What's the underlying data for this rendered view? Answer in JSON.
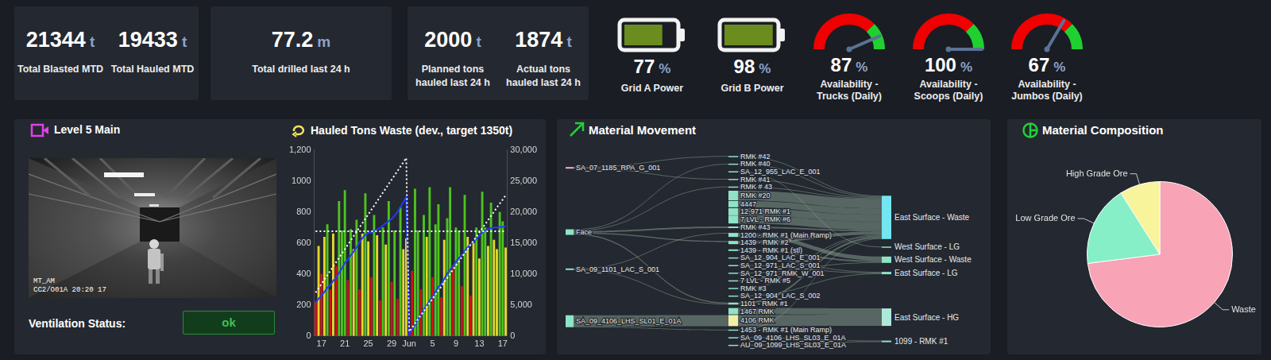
{
  "kpi_cards": [
    {
      "items": [
        {
          "value": 21344,
          "unit": "t",
          "label": "Total Blasted MTD"
        },
        {
          "value": 19433,
          "unit": "t",
          "label": "Total Hauled MTD"
        }
      ]
    },
    {
      "items": [
        {
          "value": 77.2,
          "unit": "m",
          "label": "Total drilled last 24 h"
        }
      ]
    },
    {
      "items": [
        {
          "value": 2000,
          "unit": "t",
          "label": "Planned tons hauled last 24 h"
        },
        {
          "value": 1874,
          "unit": "t",
          "label": "Actual tons hauled last 24 h"
        }
      ]
    }
  ],
  "batteries": [
    {
      "value": 77,
      "unit": "%",
      "label": "Grid A Power"
    },
    {
      "value": 98,
      "unit": "%",
      "label": "Grid B Power"
    }
  ],
  "gauges": [
    {
      "value": 87,
      "unit": "%",
      "label": "Availability - Trucks (Daily)",
      "range": [
        0,
        100
      ],
      "zones": [
        {
          "from": 0,
          "to": 75,
          "color": "#f00000"
        },
        {
          "from": 75,
          "to": 100,
          "color": "#20d030"
        }
      ]
    },
    {
      "value": 100,
      "unit": "%",
      "label": "Availability - Scoops (Daily)",
      "range": [
        0,
        100
      ],
      "zones": [
        {
          "from": 0,
          "to": 75,
          "color": "#f00000"
        },
        {
          "from": 75,
          "to": 100,
          "color": "#20d030"
        }
      ]
    },
    {
      "value": 67,
      "unit": "%",
      "label": "Availability - Jumbos (Daily)",
      "range": [
        0,
        100
      ],
      "zones": [
        {
          "from": 0,
          "to": 75,
          "color": "#f00000"
        },
        {
          "from": 75,
          "to": 100,
          "color": "#20d030"
        }
      ]
    }
  ],
  "camera_panel": {
    "title": "Level 5 Main",
    "overlay_text": [
      "MT_AM",
      "CC2/O01A 20:20 17"
    ],
    "status_label": "Ventilation Status:",
    "status": "ok"
  },
  "chart_data": [
    {
      "type": "bar",
      "title": "Hauled Tons Waste (dev., target 1350t)",
      "categories": [
        null,
        null,
        "17",
        null,
        null,
        null,
        null,
        null,
        null,
        null,
        "21",
        null,
        null,
        null,
        null,
        null,
        null,
        null,
        "25",
        null,
        null,
        null,
        null,
        null,
        null,
        null,
        "29",
        null,
        null,
        null,
        null,
        null,
        "Jun",
        null,
        null,
        null,
        null,
        null,
        null,
        null,
        "5",
        null,
        null,
        null,
        null,
        null,
        null,
        null,
        "9",
        null,
        null,
        null,
        null,
        null,
        null,
        null,
        "13",
        null,
        null,
        null,
        null,
        null,
        null,
        null,
        "17",
        null
      ],
      "series": [
        {
          "type": "bar",
          "values": [
            220,
            580,
            400,
            640,
            720,
            300,
            660,
            450,
            870,
            680,
            940,
            360,
            690,
            560,
            750,
            300,
            660,
            920,
            610,
            380,
            780,
            650,
            230,
            700,
            590,
            870,
            350,
            680,
            240,
            830,
            560,
            630,
            20,
            420,
            950,
            680,
            300,
            780,
            640,
            960,
            380,
            720,
            850,
            250,
            620,
            760,
            960,
            450,
            700,
            680,
            320,
            910,
            640,
            260,
            600,
            700,
            500,
            930,
            700,
            580,
            860,
            620,
            560,
            800,
            740,
            570
          ],
          "colors": [
            "#d0121b",
            "#e6d72a",
            "#d0121b",
            "#e6d72a",
            "#4dc41e",
            "#d0121b",
            "#e6d72a",
            "#d0121b",
            "#4dc41e",
            "#4dc41e",
            "#4dc41e",
            "#d0121b",
            "#4dc41e",
            "#e6d72a",
            "#4dc41e",
            "#d0121b",
            "#e6d72a",
            "#4dc41e",
            "#e6d72a",
            "#d0121b",
            "#4dc41e",
            "#e6d72a",
            "#d0121b",
            "#4dc41e",
            "#e6d72a",
            "#4dc41e",
            "#d0121b",
            "#4dc41e",
            "#d0121b",
            "#4dc41e",
            "#e6d72a",
            "#e6d72a",
            "#d0121b",
            "#d0121b",
            "#4dc41e",
            "#4dc41e",
            "#d0121b",
            "#4dc41e",
            "#e6d72a",
            "#4dc41e",
            "#d0121b",
            "#4dc41e",
            "#4dc41e",
            "#d0121b",
            "#e6d72a",
            "#4dc41e",
            "#4dc41e",
            "#d0121b",
            "#4dc41e",
            "#4dc41e",
            "#d0121b",
            "#4dc41e",
            "#e6d72a",
            "#d0121b",
            "#e6d72a",
            "#4dc41e",
            "#e6d72a",
            "#4dc41e",
            "#4dc41e",
            "#e6d72a",
            "#4dc41e",
            "#e6d72a",
            "#e6d72a",
            "#4dc41e",
            "#4dc41e",
            "#e6d72a"
          ]
        },
        {
          "type": "line",
          "color": "#ffffff",
          "line_style": "dotted",
          "values": [
            675,
            675,
            675,
            675,
            675,
            675,
            675,
            675,
            675,
            675,
            675,
            675,
            675,
            675,
            675,
            675,
            675,
            675,
            675,
            675,
            675,
            675,
            675,
            675,
            675,
            675,
            675,
            675,
            675,
            675,
            675,
            675,
            675,
            675,
            675,
            675,
            675,
            675,
            675,
            675,
            675,
            675,
            675,
            675,
            675,
            675,
            675,
            675,
            675,
            675,
            675,
            675,
            675,
            675,
            675,
            675,
            675,
            675,
            675,
            675,
            675,
            675,
            675,
            675,
            675,
            675
          ]
        },
        {
          "type": "line",
          "axis": "y2",
          "color": "#ffffff",
          "line_style": "dotted",
          "values": [
            7000,
            7700,
            8400,
            9100,
            9800,
            10500,
            11200,
            11900,
            12600,
            13300,
            14000,
            14700,
            15400,
            16100,
            16800,
            17500,
            18200,
            18900,
            19600,
            20300,
            21000,
            21700,
            22400,
            23100,
            23800,
            24500,
            25200,
            25900,
            26600,
            27300,
            28000,
            28700,
            700,
            1350,
            2000,
            2700,
            3350,
            4000,
            4700,
            5350,
            6000,
            6700,
            7350,
            8000,
            8700,
            9350,
            10000,
            10700,
            11350,
            12000,
            12700,
            13350,
            14000,
            14700,
            15350,
            16000,
            16700,
            17350,
            18000,
            18700,
            19350,
            20000,
            20700,
            21350,
            22000,
            22700
          ]
        },
        {
          "type": "line",
          "axis": "y2",
          "color": "#1e3cff",
          "line_style": "solid",
          "values": [
            5400,
            6000,
            6500,
            7100,
            7800,
            8200,
            8900,
            9400,
            10200,
            10900,
            11800,
            12300,
            13000,
            13600,
            14300,
            15100,
            15800,
            16300,
            16600,
            16700,
            16900,
            17200,
            17400,
            17800,
            18200,
            18500,
            18900,
            19400,
            20000,
            20800,
            21600,
            22400,
            200,
            1100,
            1800,
            2700,
            3300,
            4300,
            4900,
            5700,
            6300,
            7100,
            7900,
            8400,
            9200,
            10100,
            10700,
            11300,
            12000,
            12600,
            13000,
            13700,
            14300,
            14800,
            15200,
            15700,
            16100,
            16700,
            17000,
            17300,
            17400,
            17500,
            17500,
            17600,
            17600,
            17700
          ]
        }
      ],
      "ylim": [
        0,
        1200
      ],
      "yticks": [
        0,
        200,
        400,
        600,
        800,
        1000,
        {
          "value": 1200,
          "label": "1,200"
        }
      ],
      "y2lim": [
        0,
        30000
      ],
      "y2ticks": [
        0,
        {
          "value": 5000,
          "label": "5,000"
        },
        {
          "value": 10000,
          "label": "10,000"
        },
        {
          "value": 15000,
          "label": "15,000"
        },
        {
          "value": 20000,
          "label": "20,000"
        },
        {
          "value": 25000,
          "label": "25,000"
        },
        {
          "value": 30000,
          "label": "30,000"
        }
      ],
      "grid": false
    },
    {
      "type": "pie",
      "title": "Material Composition",
      "categories": [
        "Waste",
        "Low Grade Ore",
        "High Grade Ore"
      ],
      "values": [
        73,
        18,
        9
      ],
      "colors": [
        "#f8a3b6",
        "#86efc8",
        "#f8f49c"
      ]
    }
  ],
  "material_movement": {
    "title": "Material Movement",
    "nodes": [
      {
        "name": "SA_07_1185_RPA_G_001",
        "color": "#f4b0c0"
      },
      {
        "name": "Face"
      },
      {
        "name": "SA_09_1101_LAC_S_001"
      },
      {
        "name": "SA_09_4106_LHS_SL01_E_01A"
      },
      {
        "name": "RMK #42"
      },
      {
        "name": "RMK #40"
      },
      {
        "name": "SA_12_955_LAC_E_001"
      },
      {
        "name": "RMK #41"
      },
      {
        "name": "RMK # 43"
      },
      {
        "name": "RMK #20"
      },
      {
        "name": "4447"
      },
      {
        "name": "12-971 RMK #1"
      },
      {
        "name": "7 LVL - RMK #6"
      },
      {
        "name": "RMK #43"
      },
      {
        "name": "1200 - RMK #1 (Main Ramp)"
      },
      {
        "name": "1439 - RMK #2"
      },
      {
        "name": "1439 - RMK #1 (stl)"
      },
      {
        "name": "SA_12_904_LAC_E_001"
      },
      {
        "name": "SA_12_971_LAC_S_001"
      },
      {
        "name": "SA_12_971_RMK_W_001"
      },
      {
        "name": "7 LVL - RMK #5"
      },
      {
        "name": "RMK #3"
      },
      {
        "name": "SA_12_904_LAC_S_002"
      },
      {
        "name": "1101 - RMK #1"
      },
      {
        "name": "1467 RMK"
      },
      {
        "name": "4106 RMK",
        "color": "#eef1a6"
      },
      {
        "name": "1453 - RMK #1 (Main Ramp)"
      },
      {
        "name": "SA_09_4106_LHS_SL03_E_01A"
      },
      {
        "name": "AU_09_1099_LHS_SL03_E_01A"
      },
      {
        "name": "East Surface - Waste",
        "color": "#73e6f2"
      },
      {
        "name": "West Surface - LG"
      },
      {
        "name": "West Surface - Waste"
      },
      {
        "name": "East Surface - LG"
      },
      {
        "name": "East Surface - HG",
        "color": "#aee8da"
      },
      {
        "name": "1099 - RMK #1"
      }
    ],
    "links": [
      {
        "source": "SA_07_1185_RPA_G_001",
        "target": "RMK #42",
        "value": 40
      },
      {
        "source": "SA_07_1185_RPA_G_001",
        "target": "RMK #41",
        "value": 40
      },
      {
        "source": "Face",
        "target": "RMK #40",
        "value": 40
      },
      {
        "source": "Face",
        "target": "RMK # 43",
        "value": 40
      },
      {
        "source": "Face",
        "target": "RMK #43",
        "value": 80
      },
      {
        "source": "Face",
        "target": "1439 - RMK #2",
        "value": 60
      },
      {
        "source": "Face",
        "target": "1101 - RMK #1",
        "value": 60
      },
      {
        "source": "SA_09_1101_LAC_S_001",
        "target": "1200 - RMK #1 (Main Ramp)",
        "value": 40
      },
      {
        "source": "SA_09_1101_LAC_S_001",
        "target": "1101 - RMK #1",
        "value": 40
      },
      {
        "source": "SA_09_4106_LHS_SL01_E_01A",
        "target": "4106 RMK",
        "value": 560
      },
      {
        "source": "SA_09_4106_LHS_SL01_E_01A",
        "target": "1453 - RMK #1 (Main Ramp)",
        "value": 40
      },
      {
        "source": "RMK #42",
        "target": "East Surface - Waste",
        "value": 40
      },
      {
        "source": "RMK #40",
        "target": "East Surface - Waste",
        "value": 40
      },
      {
        "source": "SA_12_955_LAC_E_001",
        "target": "West Surface - LG",
        "value": 40
      },
      {
        "source": "RMK #41",
        "target": "East Surface - Waste",
        "value": 40
      },
      {
        "source": "RMK # 43",
        "target": "East Surface - Waste",
        "value": 40
      },
      {
        "source": "RMK #20",
        "target": "East Surface - Waste",
        "value": 480
      },
      {
        "source": "4447",
        "target": "East Surface - Waste",
        "value": 320
      },
      {
        "source": "12-971 RMK #1",
        "target": "East Surface - Waste",
        "value": 360
      },
      {
        "source": "7 LVL - RMK #6",
        "target": "East Surface - Waste",
        "value": 400
      },
      {
        "source": "RMK #43",
        "target": "East Surface - Waste",
        "value": 80
      },
      {
        "source": "1200 - RMK #1 (Main Ramp)",
        "target": "West Surface - Waste",
        "value": 200
      },
      {
        "source": "1439 - RMK #2",
        "target": "East Surface - Waste",
        "value": 160
      },
      {
        "source": "1439 - RMK #1 (stl)",
        "target": "West Surface - Waste",
        "value": 80
      },
      {
        "source": "SA_12_904_LAC_E_001",
        "target": "East Surface - LG",
        "value": 40
      },
      {
        "source": "SA_12_971_LAC_S_001",
        "target": "East Surface - LG",
        "value": 40
      },
      {
        "source": "SA_12_971_RMK_W_001",
        "target": "West Surface - Waste",
        "value": 40
      },
      {
        "source": "7 LVL - RMK #5",
        "target": "East Surface - Waste",
        "value": 40
      },
      {
        "source": "RMK #3",
        "target": "East Surface - Waste",
        "value": 40
      },
      {
        "source": "SA_12_904_LAC_S_002",
        "target": "East Surface - LG",
        "value": 40
      },
      {
        "source": "1101 - RMK #1",
        "target": "East Surface - Waste",
        "value": 100
      },
      {
        "source": "1467 RMK",
        "target": "East Surface - HG",
        "value": 320
      },
      {
        "source": "4106 RMK",
        "target": "East Surface - HG",
        "value": 560
      },
      {
        "source": "1453 - RMK #1 (Main Ramp)",
        "target": "East Surface - Waste",
        "value": 40
      },
      {
        "source": "SA_09_4106_LHS_SL03_E_01A",
        "target": "1099 - RMK #1",
        "value": 40
      },
      {
        "source": "AU_09_1099_LHS_SL03_E_01A",
        "target": "1099 - RMK #1",
        "value": 40
      }
    ]
  }
}
